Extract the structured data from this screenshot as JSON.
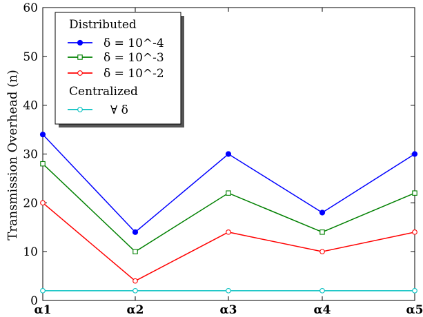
{
  "chart_data": {
    "type": "line",
    "ylabel": "Transmission Overhead (n)",
    "xlabel": "",
    "ylim": [
      0,
      60
    ],
    "yticks": [
      0,
      10,
      20,
      30,
      40,
      50,
      60
    ],
    "categories": [
      "α1",
      "α2",
      "α3",
      "α4",
      "α5"
    ],
    "grid": false,
    "legend_position": "top-left",
    "legend": {
      "group1": "Distributed",
      "group2": "Centralized"
    },
    "series": [
      {
        "name": "δ = 10^-4",
        "group": "Distributed",
        "color": "#0000ff",
        "marker": "filled-circle",
        "values": [
          34,
          14,
          30,
          18,
          30
        ]
      },
      {
        "name": "δ = 10^-3",
        "group": "Distributed",
        "color": "#008000",
        "marker": "open-square",
        "values": [
          28,
          10,
          22,
          14,
          22
        ]
      },
      {
        "name": "δ = 10^-2",
        "group": "Distributed",
        "color": "#ff0000",
        "marker": "open-circle",
        "values": [
          20,
          4,
          14,
          10,
          14
        ]
      },
      {
        "name": "∀ δ",
        "group": "Centralized",
        "color": "#00bfbf",
        "marker": "open-circle",
        "values": [
          2,
          2,
          2,
          2,
          2
        ]
      }
    ]
  }
}
